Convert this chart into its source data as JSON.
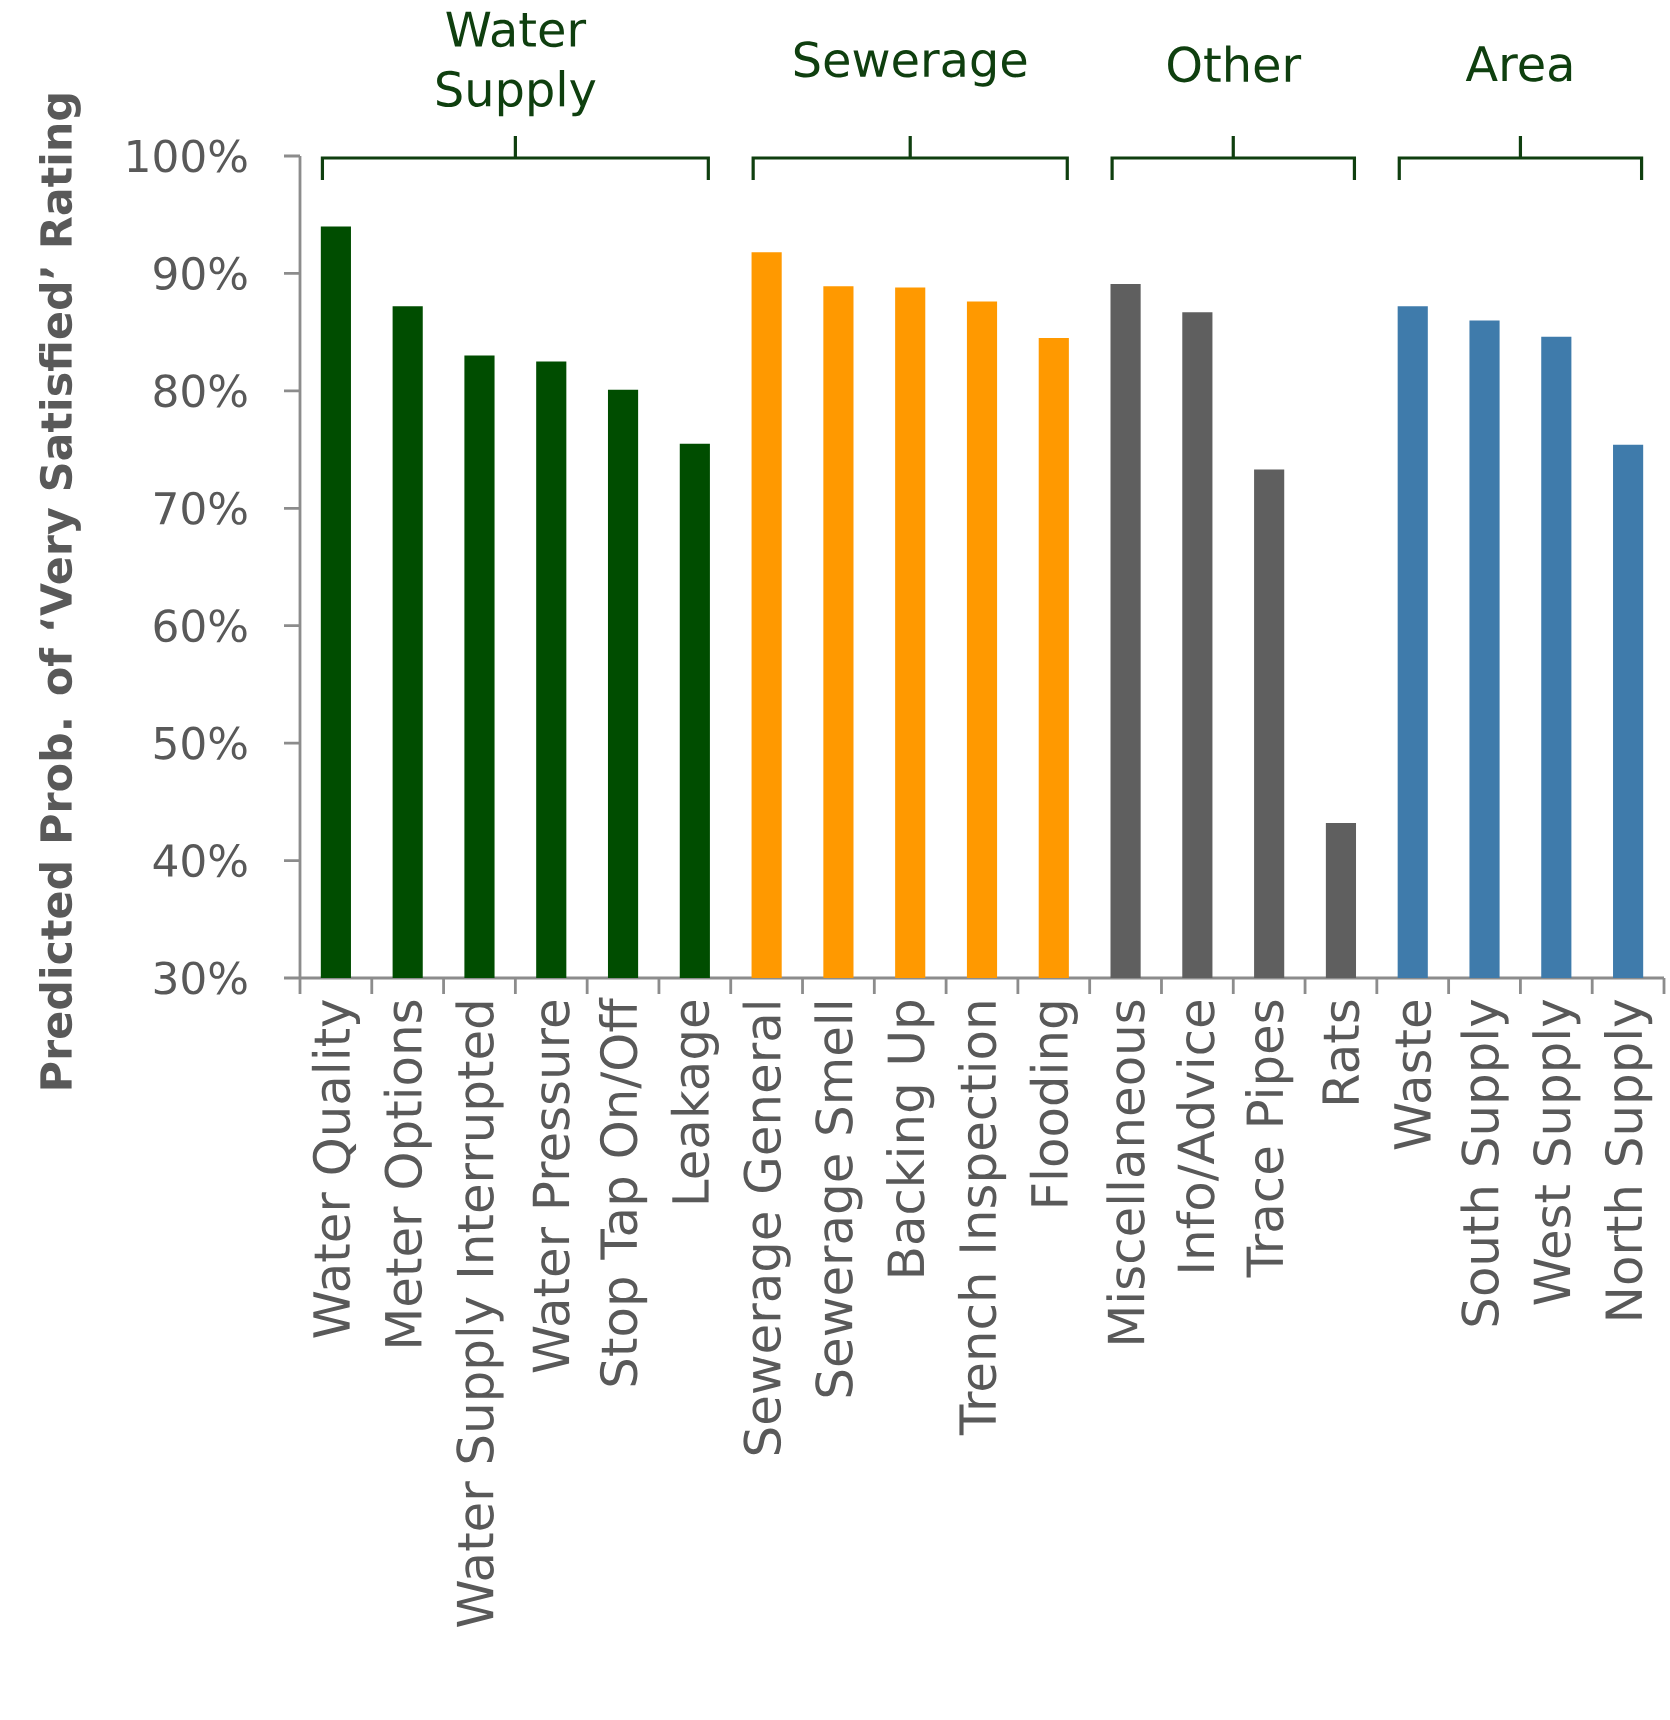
{
  "chart_data": {
    "type": "bar",
    "ylabel": "Predicted Prob. of ‘Very Satisfied’ Rating",
    "categories": [
      "Water Quality",
      "Meter Options",
      "Water Supply Interrupted",
      "Water Pressure",
      "Stop Tap On/Off",
      "Leakage",
      "Sewerage General",
      "Sewerage Smell",
      "Backing Up",
      "Trench Inspection",
      "Flooding",
      "Miscellaneous",
      "Info/Advice",
      "Trace Pipes",
      "Rats",
      "Waste",
      "South Supply",
      "West Supply",
      "North Supply"
    ],
    "values": [
      94.0,
      87.2,
      83.0,
      82.5,
      80.1,
      75.5,
      91.8,
      88.9,
      88.8,
      87.6,
      84.5,
      89.1,
      86.7,
      73.3,
      43.2,
      87.2,
      86.0,
      84.6,
      75.4
    ],
    "colors": [
      "#004d00",
      "#004d00",
      "#004d00",
      "#004d00",
      "#004d00",
      "#004d00",
      "#ff9900",
      "#ff9900",
      "#ff9900",
      "#ff9900",
      "#ff9900",
      "#5f5f5f",
      "#5f5f5f",
      "#5f5f5f",
      "#5f5f5f",
      "#3f7bab",
      "#3f7bab",
      "#3f7bab",
      "#3f7bab"
    ],
    "ylim": [
      30,
      100
    ],
    "yticks": [
      {
        "value": 30,
        "label": "30%"
      },
      {
        "value": 40,
        "label": "40%"
      },
      {
        "value": 50,
        "label": "50%"
      },
      {
        "value": 60,
        "label": "60%"
      },
      {
        "value": 70,
        "label": "70%"
      },
      {
        "value": 80,
        "label": "80%"
      },
      {
        "value": 90,
        "label": "90%"
      },
      {
        "value": 100,
        "label": "100%"
      }
    ],
    "annotations": [
      "Water Supply",
      "Sewerage",
      "Other",
      "Area"
    ]
  }
}
